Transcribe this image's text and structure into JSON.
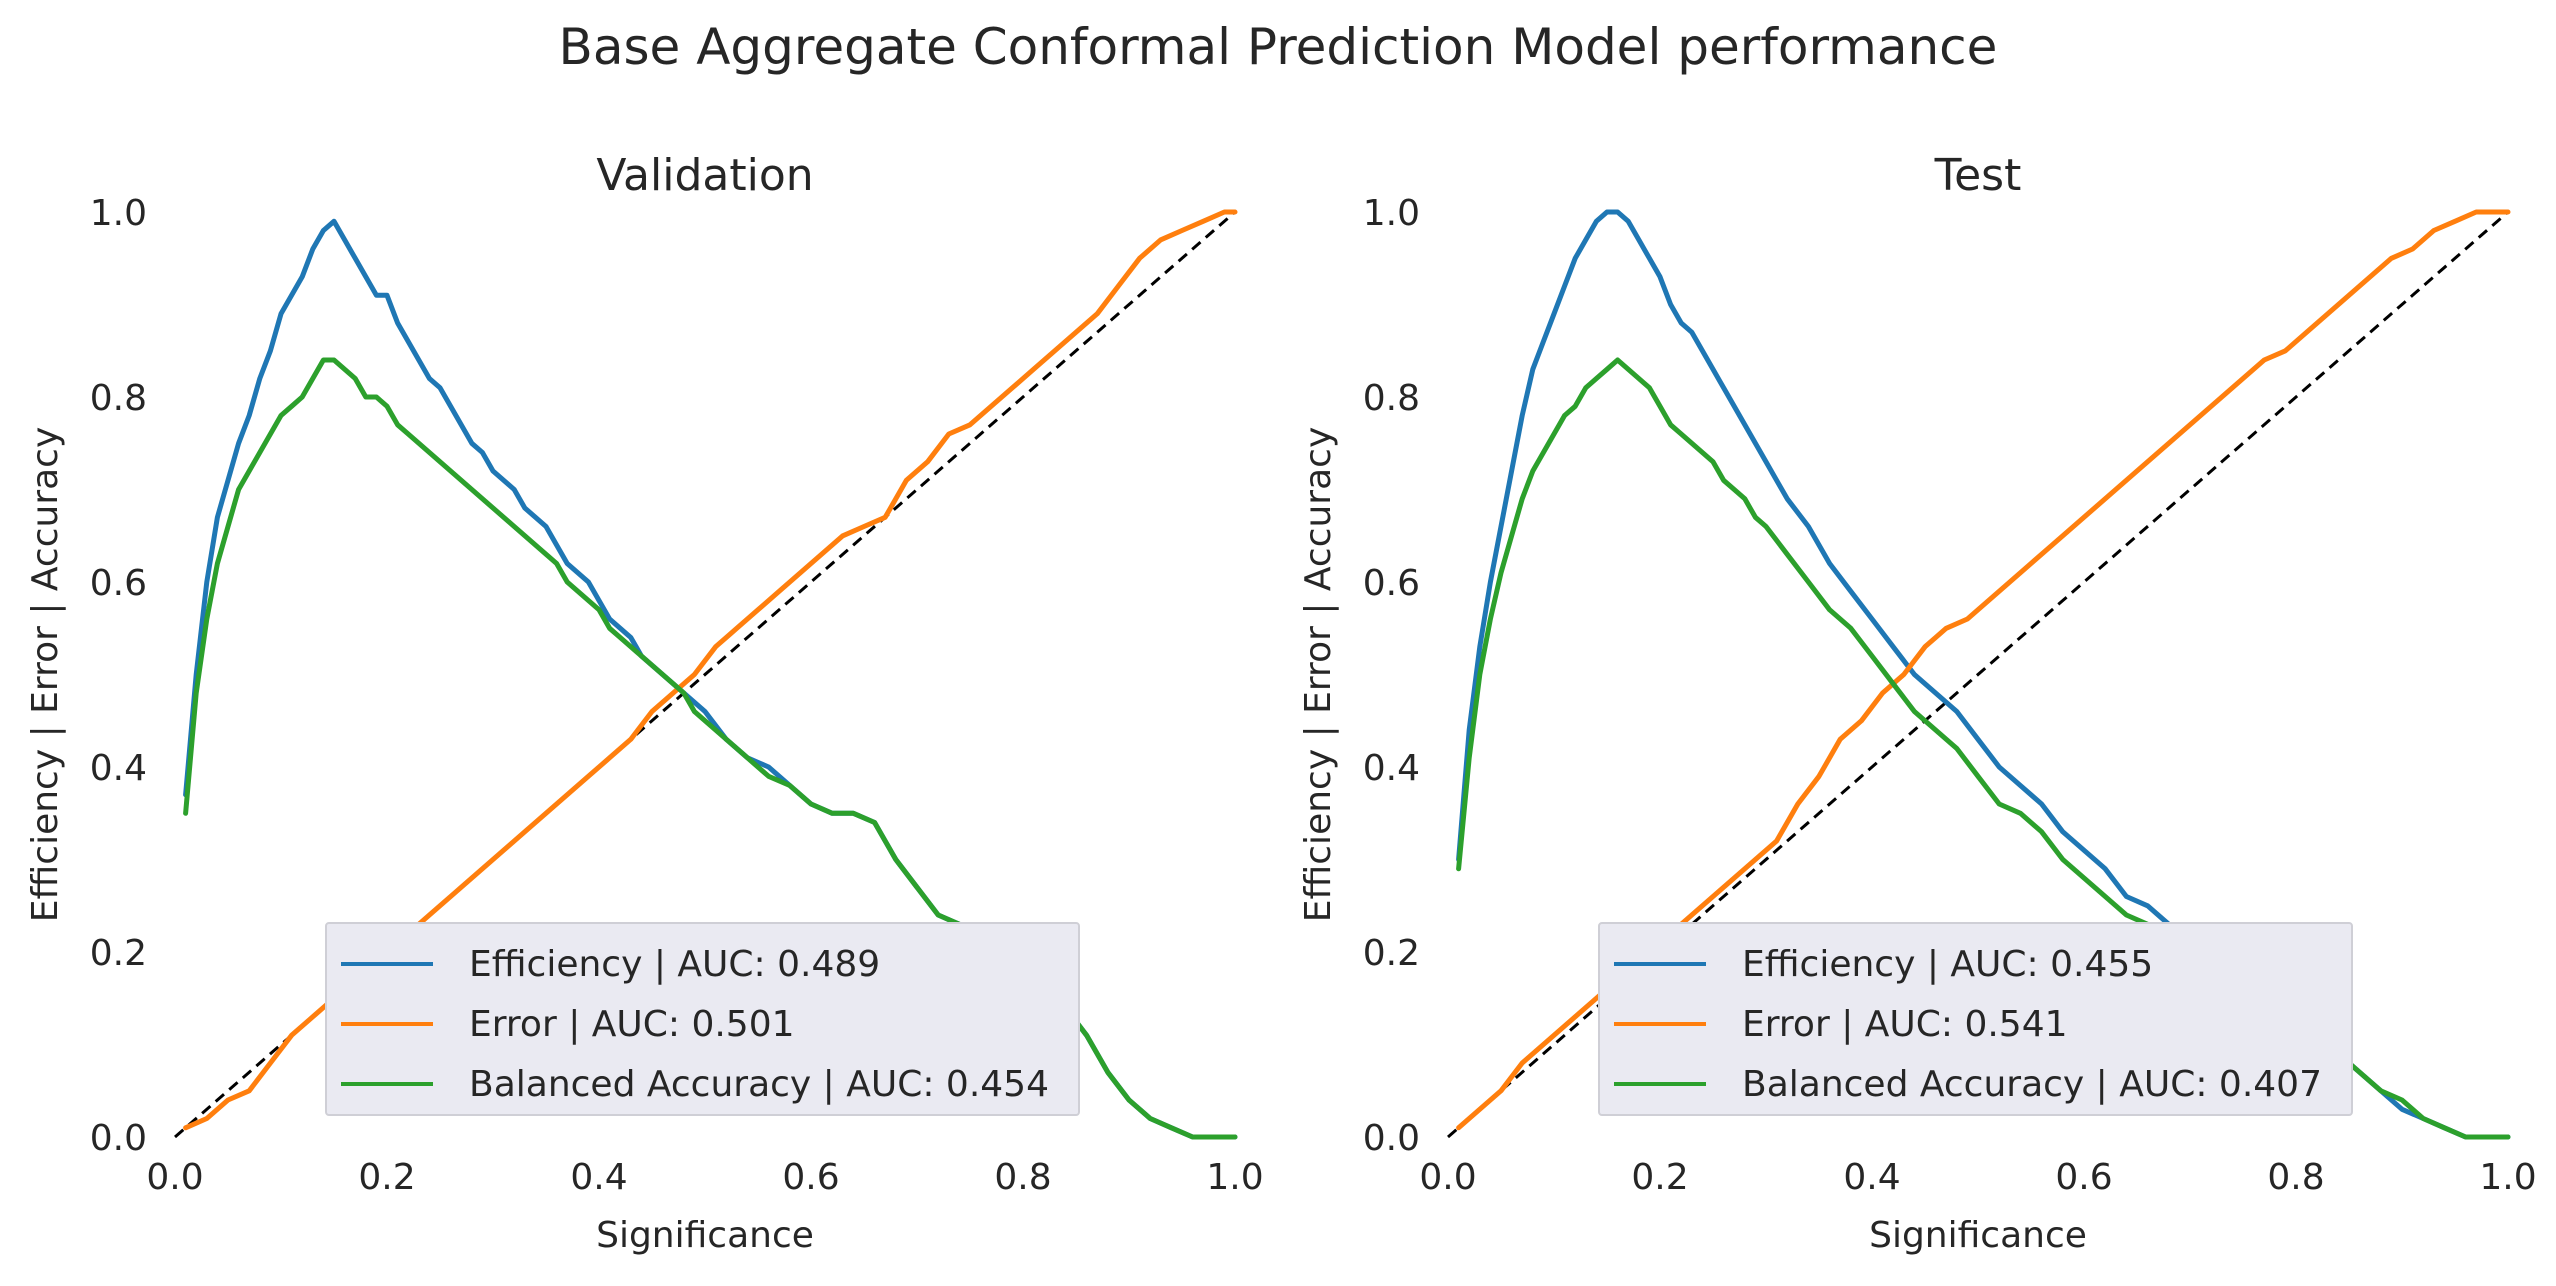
{
  "figure": {
    "title": "Base Aggregate Conformal Prediction Model performance"
  },
  "colors": {
    "efficiency": "#1f77b4",
    "error": "#ff7f0e",
    "balanced_accuracy": "#2ca02c",
    "diagonal": "#000000",
    "axes_bg": "#ffffff",
    "legend_bg": "#eaeaf2"
  },
  "chart_data": [
    {
      "type": "line",
      "title": "Validation",
      "xlabel": "Significance",
      "ylabel": "Efficiency | Error | Accuracy",
      "xlim": [
        0,
        1
      ],
      "ylim": [
        0,
        1
      ],
      "xticks": [
        "0.0",
        "0.2",
        "0.4",
        "0.6",
        "0.8",
        "1.0"
      ],
      "yticks": [
        "0.0",
        "0.2",
        "0.4",
        "0.6",
        "0.8",
        "1.0"
      ],
      "grid": false,
      "legend_placement": "lower center",
      "reference_line": {
        "style": "dashed",
        "points": [
          [
            0,
            0
          ],
          [
            1,
            1
          ]
        ]
      },
      "series": [
        {
          "name": "Efficiency | AUC: 0.489",
          "color_key": "efficiency",
          "x": [
            0.01,
            0.02,
            0.03,
            0.04,
            0.05,
            0.06,
            0.07,
            0.08,
            0.09,
            0.1,
            0.11,
            0.12,
            0.13,
            0.14,
            0.15,
            0.16,
            0.17,
            0.18,
            0.19,
            0.2,
            0.21,
            0.22,
            0.23,
            0.24,
            0.25,
            0.26,
            0.27,
            0.28,
            0.29,
            0.3,
            0.31,
            0.32,
            0.33,
            0.34,
            0.35,
            0.36,
            0.37,
            0.38,
            0.39,
            0.4,
            0.41,
            0.42,
            0.43,
            0.44,
            0.45,
            0.46,
            0.47,
            0.48,
            0.49,
            0.5,
            0.52,
            0.54,
            0.56,
            0.58,
            0.6,
            0.62,
            0.64,
            0.66,
            0.68,
            0.7,
            0.72,
            0.74,
            0.76,
            0.78,
            0.8,
            0.82,
            0.84,
            0.86,
            0.88,
            0.9,
            0.92,
            0.94,
            0.96,
            0.98,
            1.0
          ],
          "y": [
            0.37,
            0.5,
            0.6,
            0.67,
            0.71,
            0.75,
            0.78,
            0.82,
            0.85,
            0.89,
            0.91,
            0.93,
            0.96,
            0.98,
            0.99,
            0.97,
            0.95,
            0.93,
            0.91,
            0.91,
            0.88,
            0.86,
            0.84,
            0.82,
            0.81,
            0.79,
            0.77,
            0.75,
            0.74,
            0.72,
            0.71,
            0.7,
            0.68,
            0.67,
            0.66,
            0.64,
            0.62,
            0.61,
            0.6,
            0.58,
            0.56,
            0.55,
            0.54,
            0.52,
            0.51,
            0.5,
            0.49,
            0.48,
            0.47,
            0.46,
            0.43,
            0.41,
            0.4,
            0.38,
            0.36,
            0.35,
            0.35,
            0.34,
            0.3,
            0.27,
            0.24,
            0.23,
            0.22,
            0.21,
            0.19,
            0.17,
            0.14,
            0.11,
            0.07,
            0.04,
            0.02,
            0.01,
            0.0,
            0.0,
            0.0
          ]
        },
        {
          "name": "Error | AUC: 0.501",
          "color_key": "error",
          "x": [
            0.01,
            0.03,
            0.05,
            0.07,
            0.09,
            0.11,
            0.13,
            0.15,
            0.17,
            0.19,
            0.21,
            0.23,
            0.25,
            0.27,
            0.29,
            0.31,
            0.33,
            0.35,
            0.37,
            0.39,
            0.41,
            0.43,
            0.45,
            0.47,
            0.49,
            0.51,
            0.53,
            0.55,
            0.57,
            0.59,
            0.61,
            0.63,
            0.65,
            0.67,
            0.69,
            0.71,
            0.73,
            0.75,
            0.77,
            0.79,
            0.81,
            0.83,
            0.85,
            0.87,
            0.89,
            0.91,
            0.93,
            0.95,
            0.97,
            0.99,
            1.0
          ],
          "y": [
            0.01,
            0.02,
            0.04,
            0.05,
            0.08,
            0.11,
            0.13,
            0.15,
            0.17,
            0.19,
            0.21,
            0.23,
            0.25,
            0.27,
            0.29,
            0.31,
            0.33,
            0.35,
            0.37,
            0.39,
            0.41,
            0.43,
            0.46,
            0.48,
            0.5,
            0.53,
            0.55,
            0.57,
            0.59,
            0.61,
            0.63,
            0.65,
            0.66,
            0.67,
            0.71,
            0.73,
            0.76,
            0.77,
            0.79,
            0.81,
            0.83,
            0.85,
            0.87,
            0.89,
            0.92,
            0.95,
            0.97,
            0.98,
            0.99,
            1.0,
            1.0
          ]
        },
        {
          "name": "Balanced Accuracy | AUC: 0.454",
          "color_key": "balanced_accuracy",
          "x": [
            0.01,
            0.02,
            0.03,
            0.04,
            0.05,
            0.06,
            0.07,
            0.08,
            0.09,
            0.1,
            0.11,
            0.12,
            0.13,
            0.14,
            0.15,
            0.16,
            0.17,
            0.18,
            0.19,
            0.2,
            0.21,
            0.22,
            0.23,
            0.24,
            0.25,
            0.26,
            0.27,
            0.28,
            0.29,
            0.3,
            0.31,
            0.32,
            0.33,
            0.34,
            0.35,
            0.36,
            0.37,
            0.38,
            0.39,
            0.4,
            0.41,
            0.42,
            0.43,
            0.44,
            0.45,
            0.46,
            0.47,
            0.48,
            0.49,
            0.5,
            0.52,
            0.54,
            0.56,
            0.58,
            0.6,
            0.62,
            0.64,
            0.66,
            0.68,
            0.7,
            0.72,
            0.74,
            0.76,
            0.78,
            0.8,
            0.82,
            0.84,
            0.86,
            0.88,
            0.9,
            0.92,
            0.94,
            0.96,
            0.98,
            1.0
          ],
          "y": [
            0.35,
            0.48,
            0.56,
            0.62,
            0.66,
            0.7,
            0.72,
            0.74,
            0.76,
            0.78,
            0.79,
            0.8,
            0.82,
            0.84,
            0.84,
            0.83,
            0.82,
            0.8,
            0.8,
            0.79,
            0.77,
            0.76,
            0.75,
            0.74,
            0.73,
            0.72,
            0.71,
            0.7,
            0.69,
            0.68,
            0.67,
            0.66,
            0.65,
            0.64,
            0.63,
            0.62,
            0.6,
            0.59,
            0.58,
            0.57,
            0.55,
            0.54,
            0.53,
            0.52,
            0.51,
            0.5,
            0.49,
            0.48,
            0.46,
            0.45,
            0.43,
            0.41,
            0.39,
            0.38,
            0.36,
            0.35,
            0.35,
            0.34,
            0.3,
            0.27,
            0.24,
            0.23,
            0.22,
            0.21,
            0.19,
            0.17,
            0.14,
            0.11,
            0.07,
            0.04,
            0.02,
            0.01,
            0.0,
            0.0,
            0.0
          ]
        }
      ]
    },
    {
      "type": "line",
      "title": "Test",
      "xlabel": "Significance",
      "ylabel": "Efficiency | Error | Accuracy",
      "xlim": [
        0,
        1
      ],
      "ylim": [
        0,
        1
      ],
      "xticks": [
        "0.0",
        "0.2",
        "0.4",
        "0.6",
        "0.8",
        "1.0"
      ],
      "yticks": [
        "0.0",
        "0.2",
        "0.4",
        "0.6",
        "0.8",
        "1.0"
      ],
      "grid": false,
      "legend_placement": "lower center",
      "reference_line": {
        "style": "dashed",
        "points": [
          [
            0,
            0
          ],
          [
            1,
            1
          ]
        ]
      },
      "series": [
        {
          "name": "Efficiency | AUC: 0.455",
          "color_key": "efficiency",
          "x": [
            0.01,
            0.02,
            0.03,
            0.04,
            0.05,
            0.06,
            0.07,
            0.08,
            0.09,
            0.1,
            0.11,
            0.12,
            0.13,
            0.14,
            0.15,
            0.16,
            0.17,
            0.18,
            0.19,
            0.2,
            0.21,
            0.22,
            0.23,
            0.24,
            0.25,
            0.26,
            0.27,
            0.28,
            0.29,
            0.3,
            0.32,
            0.34,
            0.36,
            0.38,
            0.4,
            0.42,
            0.44,
            0.46,
            0.48,
            0.5,
            0.52,
            0.54,
            0.56,
            0.58,
            0.6,
            0.62,
            0.64,
            0.66,
            0.68,
            0.7,
            0.72,
            0.74,
            0.76,
            0.78,
            0.8,
            0.82,
            0.84,
            0.86,
            0.88,
            0.9,
            0.92,
            0.94,
            0.96,
            0.98,
            1.0
          ],
          "y": [
            0.3,
            0.44,
            0.53,
            0.6,
            0.66,
            0.72,
            0.78,
            0.83,
            0.86,
            0.89,
            0.92,
            0.95,
            0.97,
            0.99,
            1.0,
            1.0,
            0.99,
            0.97,
            0.95,
            0.93,
            0.9,
            0.88,
            0.87,
            0.85,
            0.83,
            0.81,
            0.79,
            0.77,
            0.75,
            0.73,
            0.69,
            0.66,
            0.62,
            0.59,
            0.56,
            0.53,
            0.5,
            0.48,
            0.46,
            0.43,
            0.4,
            0.38,
            0.36,
            0.33,
            0.31,
            0.29,
            0.26,
            0.25,
            0.23,
            0.21,
            0.19,
            0.17,
            0.16,
            0.14,
            0.12,
            0.1,
            0.09,
            0.07,
            0.05,
            0.03,
            0.02,
            0.01,
            0.0,
            0.0,
            0.0
          ]
        },
        {
          "name": "Error | AUC: 0.541",
          "color_key": "error",
          "x": [
            0.01,
            0.03,
            0.05,
            0.07,
            0.09,
            0.11,
            0.13,
            0.15,
            0.17,
            0.19,
            0.21,
            0.23,
            0.25,
            0.27,
            0.29,
            0.31,
            0.33,
            0.35,
            0.37,
            0.39,
            0.41,
            0.43,
            0.45,
            0.47,
            0.49,
            0.51,
            0.53,
            0.55,
            0.57,
            0.59,
            0.61,
            0.63,
            0.65,
            0.67,
            0.69,
            0.71,
            0.73,
            0.75,
            0.77,
            0.79,
            0.81,
            0.83,
            0.85,
            0.87,
            0.89,
            0.91,
            0.93,
            0.95,
            0.97,
            0.99,
            1.0
          ],
          "y": [
            0.01,
            0.03,
            0.05,
            0.08,
            0.1,
            0.12,
            0.14,
            0.16,
            0.18,
            0.2,
            0.22,
            0.24,
            0.26,
            0.28,
            0.3,
            0.32,
            0.36,
            0.39,
            0.43,
            0.45,
            0.48,
            0.5,
            0.53,
            0.55,
            0.56,
            0.58,
            0.6,
            0.62,
            0.64,
            0.66,
            0.68,
            0.7,
            0.72,
            0.74,
            0.76,
            0.78,
            0.8,
            0.82,
            0.84,
            0.85,
            0.87,
            0.89,
            0.91,
            0.93,
            0.95,
            0.96,
            0.98,
            0.99,
            1.0,
            1.0,
            1.0
          ]
        },
        {
          "name": "Balanced Accuracy | AUC: 0.407",
          "color_key": "balanced_accuracy",
          "x": [
            0.01,
            0.02,
            0.03,
            0.04,
            0.05,
            0.06,
            0.07,
            0.08,
            0.09,
            0.1,
            0.11,
            0.12,
            0.13,
            0.14,
            0.15,
            0.16,
            0.17,
            0.18,
            0.19,
            0.2,
            0.21,
            0.22,
            0.23,
            0.24,
            0.25,
            0.26,
            0.27,
            0.28,
            0.29,
            0.3,
            0.32,
            0.34,
            0.36,
            0.38,
            0.4,
            0.42,
            0.44,
            0.46,
            0.48,
            0.5,
            0.52,
            0.54,
            0.56,
            0.58,
            0.6,
            0.62,
            0.64,
            0.66,
            0.68,
            0.7,
            0.72,
            0.74,
            0.76,
            0.78,
            0.8,
            0.82,
            0.84,
            0.86,
            0.88,
            0.9,
            0.92,
            0.94,
            0.96,
            0.98,
            1.0
          ],
          "y": [
            0.29,
            0.41,
            0.5,
            0.56,
            0.61,
            0.65,
            0.69,
            0.72,
            0.74,
            0.76,
            0.78,
            0.79,
            0.81,
            0.82,
            0.83,
            0.84,
            0.83,
            0.82,
            0.81,
            0.79,
            0.77,
            0.76,
            0.75,
            0.74,
            0.73,
            0.71,
            0.7,
            0.69,
            0.67,
            0.66,
            0.63,
            0.6,
            0.57,
            0.55,
            0.52,
            0.49,
            0.46,
            0.44,
            0.42,
            0.39,
            0.36,
            0.35,
            0.33,
            0.3,
            0.28,
            0.26,
            0.24,
            0.23,
            0.22,
            0.2,
            0.18,
            0.17,
            0.15,
            0.14,
            0.12,
            0.1,
            0.09,
            0.07,
            0.05,
            0.04,
            0.02,
            0.01,
            0.0,
            0.0,
            0.0
          ]
        }
      ]
    }
  ]
}
